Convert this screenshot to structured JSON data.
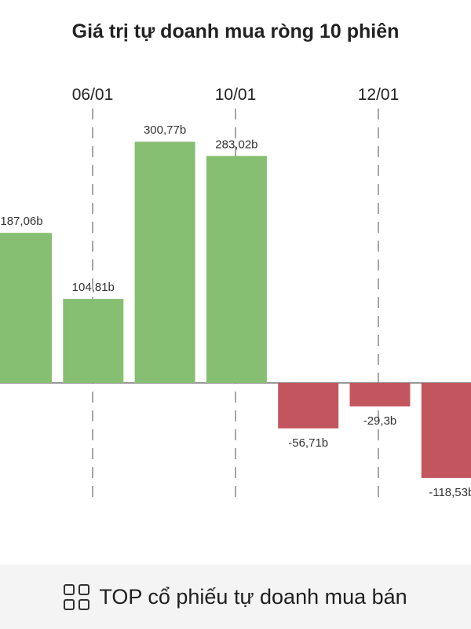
{
  "chart_data": {
    "type": "bar",
    "title": "Giá trị tự doanh mua ròng 10 phiên",
    "categories": [
      "",
      "",
      "",
      "",
      "",
      "",
      ""
    ],
    "values": [
      187.06,
      104.81,
      300.77,
      283.02,
      -56.71,
      -29.3,
      -118.53
    ],
    "data_labels": [
      "187,06b",
      "104,81b",
      "300,77b",
      "283,02b",
      "-56,71b",
      "-29,3b",
      "-118,53b"
    ],
    "x_tick_labels": [
      "06/01",
      "10/01",
      "12/01"
    ],
    "colors": {
      "positive": "#86bf72",
      "negative": "#c3555e",
      "axis": "#777777",
      "gridline": "#777777"
    },
    "grid": "vertical dashed at tick labels"
  },
  "footer": {
    "icon": "grid-icon",
    "label": "TOP cổ phiếu tự doanh mua bán"
  }
}
